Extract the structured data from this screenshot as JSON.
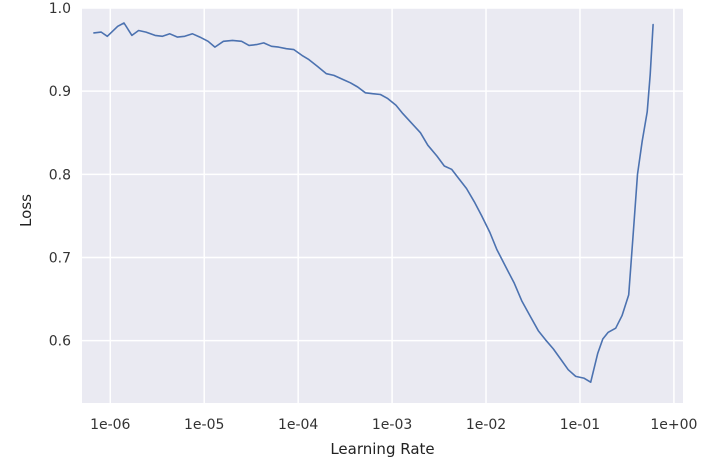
{
  "chart_data": {
    "type": "line",
    "xscale": "log",
    "xlabel": "Learning Rate",
    "ylabel": "Loss",
    "xlim": [
      5e-07,
      1.25
    ],
    "ylim": [
      0.525,
      1.0
    ],
    "grid": true,
    "colors": {
      "background": "#eaeaf2",
      "grid": "#ffffff",
      "line": "#4c72b0"
    },
    "x_ticks": [
      {
        "value": 1e-06,
        "label": "1e-06"
      },
      {
        "value": 1e-05,
        "label": "1e-05"
      },
      {
        "value": 0.0001,
        "label": "1e-04"
      },
      {
        "value": 0.001,
        "label": "1e-03"
      },
      {
        "value": 0.01,
        "label": "1e-02"
      },
      {
        "value": 0.1,
        "label": "1e-01"
      },
      {
        "value": 1,
        "label": "1e+00"
      }
    ],
    "y_ticks": [
      {
        "value": 0.6,
        "label": "0.6"
      },
      {
        "value": 0.7,
        "label": "0.7"
      },
      {
        "value": 0.8,
        "label": "0.8"
      },
      {
        "value": 0.9,
        "label": "0.9"
      },
      {
        "value": 1.0,
        "label": "1.0"
      }
    ],
    "series": [
      {
        "x": [
          6.7e-07,
          8e-07,
          9.3e-07,
          1.2e-06,
          1.4e-06,
          1.7e-06,
          2e-06,
          2.4e-06,
          3e-06,
          3.6e-06,
          4.3e-06,
          5.2e-06,
          6.2e-06,
          7.5e-06,
          9e-06,
          1.1e-05,
          1.3e-05,
          1.6e-05,
          2e-05,
          2.5e-05,
          3e-05,
          3.6e-05,
          4.3e-05,
          5.2e-05,
          6.2e-05,
          7.5e-05,
          9e-05,
          0.00011,
          0.00013,
          0.00016,
          0.0002,
          0.00024,
          0.0003,
          0.00036,
          0.00043,
          0.00052,
          0.00062,
          0.00075,
          0.0009,
          0.0011,
          0.0013,
          0.0016,
          0.002,
          0.0024,
          0.003,
          0.0036,
          0.0043,
          0.0052,
          0.0062,
          0.0075,
          0.009,
          0.011,
          0.013,
          0.016,
          0.02,
          0.024,
          0.03,
          0.036,
          0.043,
          0.052,
          0.062,
          0.075,
          0.09,
          0.11,
          0.13,
          0.155,
          0.175,
          0.2,
          0.24,
          0.28,
          0.33,
          0.37,
          0.41,
          0.46,
          0.52,
          0.56,
          0.6
        ],
        "y": [
          0.97,
          0.971,
          0.966,
          0.978,
          0.982,
          0.967,
          0.973,
          0.971,
          0.967,
          0.966,
          0.969,
          0.965,
          0.966,
          0.969,
          0.965,
          0.96,
          0.953,
          0.96,
          0.961,
          0.96,
          0.955,
          0.956,
          0.958,
          0.954,
          0.953,
          0.951,
          0.95,
          0.943,
          0.938,
          0.93,
          0.921,
          0.919,
          0.914,
          0.91,
          0.905,
          0.898,
          0.897,
          0.896,
          0.891,
          0.883,
          0.873,
          0.862,
          0.85,
          0.835,
          0.822,
          0.81,
          0.806,
          0.794,
          0.783,
          0.767,
          0.75,
          0.73,
          0.71,
          0.69,
          0.669,
          0.648,
          0.628,
          0.612,
          0.601,
          0.59,
          0.578,
          0.565,
          0.557,
          0.555,
          0.55,
          0.585,
          0.602,
          0.61,
          0.615,
          0.63,
          0.655,
          0.73,
          0.8,
          0.84,
          0.875,
          0.92,
          0.98
        ]
      }
    ]
  }
}
